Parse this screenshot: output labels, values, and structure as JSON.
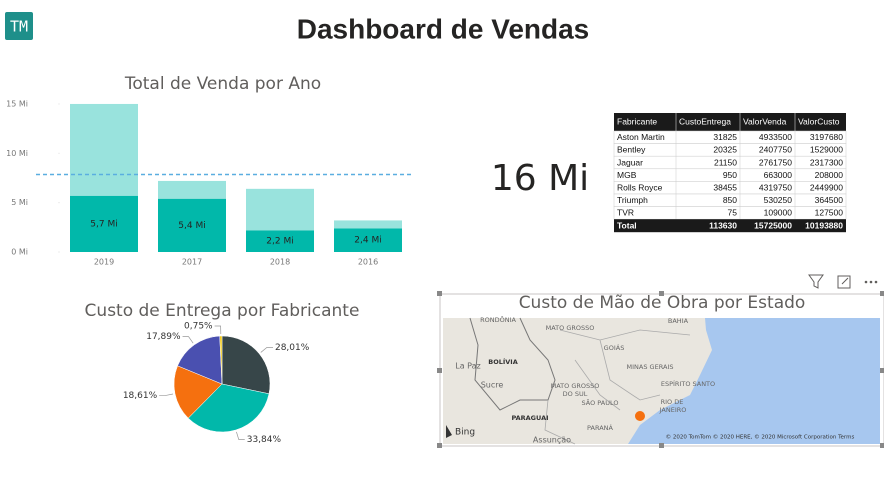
{
  "header": {
    "logo": "TM",
    "title": "Dashboard de Vendas"
  },
  "chart_data": [
    {
      "type": "bar",
      "title": "Total de Venda por Ano",
      "categories": [
        "2019",
        "2017",
        "2018",
        "2016"
      ],
      "series": [
        {
          "color": "#01B8AA",
          "values": [
            5.7,
            5.4,
            2.2,
            2.4
          ],
          "value_labels": [
            "5,7 Mi",
            "5,4 Mi",
            "2,2 Mi",
            "2,4 Mi"
          ]
        },
        {
          "color": "#99E3DD",
          "values": [
            9.3,
            1.8,
            4.2,
            0.8
          ]
        }
      ],
      "reference_line": 7.85,
      "reference_color": "#5AAEE0",
      "ylim": [
        0,
        15.4
      ],
      "yticks": [
        {
          "value": 0,
          "label": "0 Mi"
        },
        {
          "value": 5,
          "label": "5 Mi"
        },
        {
          "value": 10,
          "label": "10 Mi"
        },
        {
          "value": 15,
          "label": "15 Mi"
        }
      ],
      "grid": false
    },
    {
      "type": "pie",
      "title": "Custo de Entrega por Fabricante",
      "values": [
        28.01,
        33.84,
        18.61,
        17.89,
        0.75
      ],
      "value_labels": [
        "28,01%",
        "33,84%",
        "18,61%",
        "17,89%",
        "0,75%"
      ],
      "colors": [
        "#374649",
        "#01B8AA",
        "#F5700F",
        "#4A50B0",
        "#F2C80F"
      ]
    }
  ],
  "card": {
    "value": "16 Mi"
  },
  "table": {
    "columns": [
      "Fabricante",
      "CustoEntrega",
      "ValorVenda",
      "ValorCusto"
    ],
    "rows": [
      [
        "Aston Martin",
        31825,
        4933500,
        3197680
      ],
      [
        "Bentley",
        20325,
        2407750,
        1529000
      ],
      [
        "Jaguar",
        21150,
        2761750,
        2317300
      ],
      [
        "MGB",
        950,
        663000,
        208000
      ],
      [
        "Rolls Royce",
        38455,
        4319750,
        2449900
      ],
      [
        "Triumph",
        850,
        530250,
        364500
      ],
      [
        "TVR",
        75,
        109000,
        127500
      ]
    ],
    "total": [
      "Total",
      113630,
      15725000,
      10193880
    ]
  },
  "map": {
    "title": "Custo de Mão de Obra por Estado",
    "labels": [
      "RONDÔNIA",
      "MATO GROSSO",
      "BAHIA",
      "BOLÍVIA",
      "GOIÁS",
      "La Paz",
      "MINAS GERAIS",
      "Sucre",
      "MATO GROSSO",
      "DO SUL",
      "ESPÍRITO SANTO",
      "RIO DE",
      "JANEIRO",
      "SÃO PAULO",
      "PARAGUAI",
      "PARANÁ",
      "Assunção"
    ],
    "provider": "Bing",
    "copyright": "© 2020 TomTom © 2020 HERE, © 2020 Microsoft Corporation  Terms"
  }
}
